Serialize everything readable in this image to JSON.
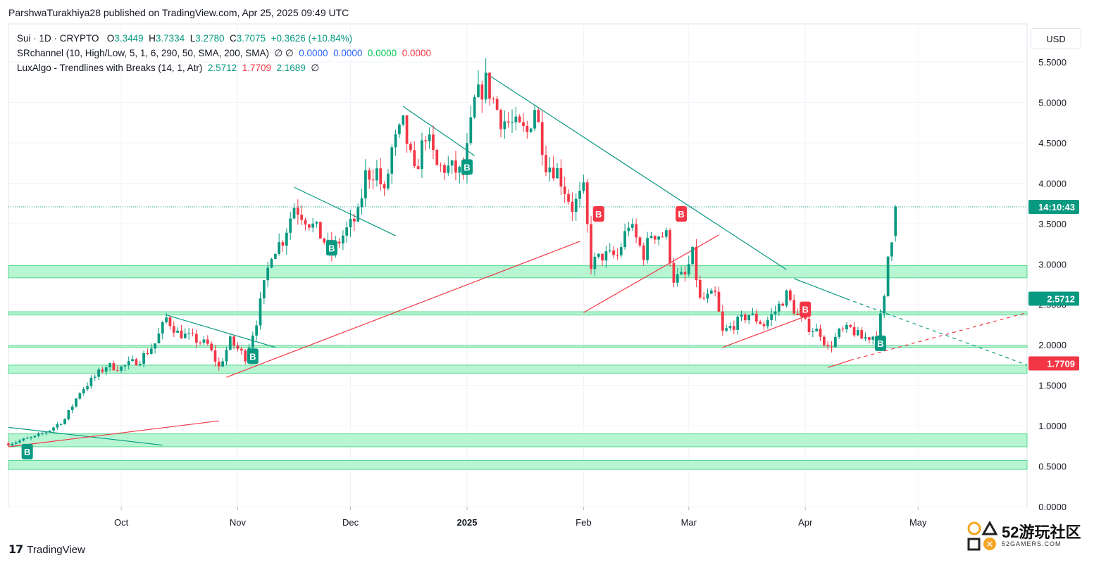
{
  "header": {
    "publisher": "ParshwaTurakhiya28 published on TradingView.com, Apr 25, 2025 09:49 UTC"
  },
  "legend": {
    "symbol": "Sui · 1D · CRYPTO",
    "o_label": "O",
    "o_val": "3.3449",
    "h_label": "H",
    "h_val": "3.7334",
    "l_label": "L",
    "l_val": "3.2780",
    "c_label": "C",
    "c_val": "3.7075",
    "change": "+0.3626 (+10.84%)",
    "ind1_name": "SRchannel (10, High/Low, 5, 1, 6, 290, 50, SMA, 200, SMA)",
    "ind1_sym": "∅ ∅",
    "ind1_v1": "0.0000",
    "ind1_v2": "0.0000",
    "ind1_v3": "0.0000",
    "ind1_v4": "0.0000",
    "ind2_name": "LuxAlgo - Trendlines with Breaks (14, 1, Atr)",
    "ind2_v1": "2.5712",
    "ind2_v2": "1.7709",
    "ind2_v3": "2.1689",
    "ind2_sym": "∅"
  },
  "currency_button": "USD",
  "footer": {
    "brand": "TradingView"
  },
  "watermark": {
    "text": "52游玩社区",
    "sub": "52GAMERS.COM"
  },
  "colors": {
    "up": "#089981",
    "down": "#f23645",
    "zone": "#b7f5d3",
    "zone_border": "#55d98f",
    "trend_green": "#089981",
    "trend_red": "#f23645"
  },
  "chart_data": {
    "type": "candlestick",
    "title": "Sui · 1D · CRYPTO",
    "ylim": [
      0,
      5.7
    ],
    "y_ticks": [
      "0.0000",
      "0.5000",
      "1.0000",
      "1.5000",
      "2.0000",
      "2.5000",
      "3.0000",
      "3.5000",
      "4.0000",
      "4.5000",
      "5.0000",
      "5.5000"
    ],
    "x_ticks": [
      {
        "label": "Oct",
        "date": "2024-10-01"
      },
      {
        "label": "Nov",
        "date": "2024-11-01"
      },
      {
        "label": "Dec",
        "date": "2024-12-01"
      },
      {
        "label": "2025",
        "date": "2025-01-01",
        "bold": true
      },
      {
        "label": "Feb",
        "date": "2025-02-01"
      },
      {
        "label": "Mar",
        "date": "2025-03-01"
      },
      {
        "label": "Apr",
        "date": "2025-04-01"
      },
      {
        "label": "May",
        "date": "2025-05-01"
      }
    ],
    "x_range": [
      "2024-09-01",
      "2025-05-30"
    ],
    "price_labels": [
      {
        "text": "14:10:43",
        "value": 3.7075,
        "color": "#089981"
      },
      {
        "text": "2.5712",
        "value": 2.5712,
        "color": "#089981"
      },
      {
        "text": "1.7709",
        "value": 1.7709,
        "color": "#f23645"
      }
    ],
    "last_price": 3.7075,
    "sr_zones": [
      [
        0.46,
        0.57
      ],
      [
        0.74,
        0.9
      ],
      [
        1.65,
        1.75
      ],
      [
        1.97,
        1.99
      ],
      [
        2.37,
        2.41
      ],
      [
        2.83,
        2.98
      ]
    ],
    "close_path": [
      [
        "2024-09-01",
        0.78
      ],
      [
        "2024-09-08",
        0.86
      ],
      [
        "2024-09-12",
        0.95
      ],
      [
        "2024-09-16",
        1.08
      ],
      [
        "2024-09-20",
        1.42
      ],
      [
        "2024-09-23",
        1.56
      ],
      [
        "2024-09-27",
        1.74
      ],
      [
        "2024-10-01",
        1.72
      ],
      [
        "2024-10-06",
        1.82
      ],
      [
        "2024-10-10",
        2.02
      ],
      [
        "2024-10-13",
        2.33
      ],
      [
        "2024-10-16",
        2.15
      ],
      [
        "2024-10-20",
        2.08
      ],
      [
        "2024-10-24",
        2.0
      ],
      [
        "2024-10-27",
        1.72
      ],
      [
        "2024-10-30",
        2.05
      ],
      [
        "2024-11-03",
        1.85
      ],
      [
        "2024-11-06",
        2.3
      ],
      [
        "2024-11-10",
        3.15
      ],
      [
        "2024-11-13",
        3.3
      ],
      [
        "2024-11-16",
        3.72
      ],
      [
        "2024-11-18",
        3.62
      ],
      [
        "2024-11-22",
        3.42
      ],
      [
        "2024-11-26",
        3.15
      ],
      [
        "2024-11-30",
        3.42
      ],
      [
        "2024-12-03",
        3.6
      ],
      [
        "2024-12-05",
        4.1
      ],
      [
        "2024-12-08",
        4.15
      ],
      [
        "2024-12-10",
        3.85
      ],
      [
        "2024-12-12",
        4.42
      ],
      [
        "2024-12-15",
        4.72
      ],
      [
        "2024-12-18",
        4.1
      ],
      [
        "2024-12-21",
        4.62
      ],
      [
        "2024-12-24",
        4.2
      ],
      [
        "2024-12-28",
        4.18
      ],
      [
        "2024-12-31",
        4.1
      ],
      [
        "2025-01-03",
        5.0
      ],
      [
        "2025-01-06",
        5.25
      ],
      [
        "2025-01-10",
        4.8
      ],
      [
        "2025-01-13",
        4.72
      ],
      [
        "2025-01-17",
        4.62
      ],
      [
        "2025-01-19",
        4.95
      ],
      [
        "2025-01-22",
        4.25
      ],
      [
        "2025-01-25",
        4.15
      ],
      [
        "2025-01-29",
        3.7
      ],
      [
        "2025-02-01",
        3.9
      ],
      [
        "2025-02-03",
        3.0
      ],
      [
        "2025-02-06",
        3.1
      ],
      [
        "2025-02-10",
        3.1
      ],
      [
        "2025-02-13",
        3.5
      ],
      [
        "2025-02-17",
        3.12
      ],
      [
        "2025-02-19",
        3.38
      ],
      [
        "2025-02-23",
        3.35
      ],
      [
        "2025-02-25",
        2.82
      ],
      [
        "2025-02-28",
        2.85
      ],
      [
        "2025-03-02",
        3.12
      ],
      [
        "2025-03-04",
        2.55
      ],
      [
        "2025-03-08",
        2.62
      ],
      [
        "2025-03-10",
        2.15
      ],
      [
        "2025-03-13",
        2.25
      ],
      [
        "2025-03-17",
        2.38
      ],
      [
        "2025-03-21",
        2.25
      ],
      [
        "2025-03-24",
        2.42
      ],
      [
        "2025-03-27",
        2.62
      ],
      [
        "2025-03-30",
        2.35
      ],
      [
        "2025-04-02",
        2.22
      ],
      [
        "2025-04-05",
        2.15
      ],
      [
        "2025-04-07",
        1.95
      ],
      [
        "2025-04-10",
        2.15
      ],
      [
        "2025-04-13",
        2.2
      ],
      [
        "2025-04-16",
        2.08
      ],
      [
        "2025-04-20",
        2.12
      ],
      [
        "2025-04-22",
        2.55
      ],
      [
        "2025-04-23",
        3.1
      ],
      [
        "2025-04-24",
        3.35
      ],
      [
        "2025-04-25",
        3.71
      ]
    ],
    "trendlines": [
      {
        "color": "green",
        "from": [
          "2024-09-01",
          0.98
        ],
        "to": [
          "2024-10-12",
          0.76
        ]
      },
      {
        "color": "red",
        "from": [
          "2024-09-01",
          0.74
        ],
        "to": [
          "2024-10-27",
          1.06
        ]
      },
      {
        "color": "green",
        "from": [
          "2024-10-13",
          2.37
        ],
        "to": [
          "2024-11-11",
          1.97
        ]
      },
      {
        "color": "red",
        "from": [
          "2024-10-29",
          1.6
        ],
        "to": [
          "2025-01-31",
          3.28
        ]
      },
      {
        "color": "green",
        "from": [
          "2024-11-16",
          3.95
        ],
        "to": [
          "2024-12-13",
          3.35
        ]
      },
      {
        "color": "green",
        "from": [
          "2024-12-15",
          4.95
        ],
        "to": [
          "2025-01-03",
          4.34
        ]
      },
      {
        "color": "green",
        "from": [
          "2025-01-06",
          5.36
        ],
        "to": [
          "2025-03-27",
          2.93
        ]
      },
      {
        "color": "red",
        "from": [
          "2025-02-01",
          2.4
        ],
        "to": [
          "2025-03-09",
          3.36
        ]
      },
      {
        "color": "red",
        "from": [
          "2025-03-10",
          1.97
        ],
        "to": [
          "2025-04-02",
          2.37
        ]
      },
      {
        "color": "green",
        "from": [
          "2025-03-29",
          2.82
        ],
        "to": [
          "2025-04-12",
          2.57
        ]
      },
      {
        "color": "green",
        "dashed": true,
        "from": [
          "2025-04-12",
          2.57
        ],
        "to": [
          "2025-05-30",
          1.75
        ]
      },
      {
        "color": "red",
        "from": [
          "2025-04-07",
          1.72
        ],
        "to": [
          "2025-04-13",
          1.81
        ]
      },
      {
        "color": "red",
        "dashed": true,
        "from": [
          "2025-04-13",
          1.81
        ],
        "to": [
          "2025-05-30",
          2.4
        ]
      }
    ],
    "signals": [
      {
        "type": "B",
        "dir": "up",
        "date": "2024-09-06",
        "value": 0.68
      },
      {
        "type": "B",
        "dir": "up",
        "date": "2024-11-05",
        "value": 1.86
      },
      {
        "type": "B",
        "dir": "up",
        "date": "2024-11-26",
        "value": 3.2
      },
      {
        "type": "B",
        "dir": "up",
        "date": "2025-01-01",
        "value": 4.2
      },
      {
        "type": "B",
        "dir": "down",
        "date": "2025-02-05",
        "value": 3.62
      },
      {
        "type": "B",
        "dir": "down",
        "date": "2025-02-27",
        "value": 3.62
      },
      {
        "type": "B",
        "dir": "down",
        "date": "2025-04-01",
        "value": 2.44
      },
      {
        "type": "B",
        "dir": "up",
        "date": "2025-04-21",
        "value": 2.02
      }
    ]
  }
}
